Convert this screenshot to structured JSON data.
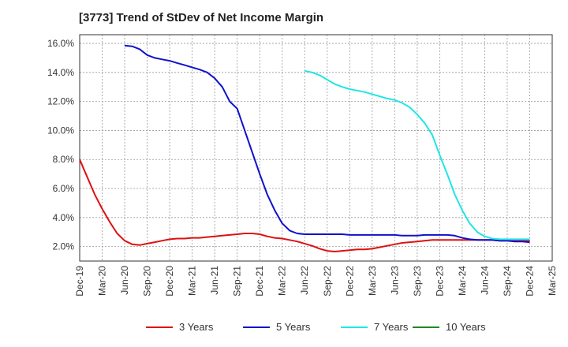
{
  "chart_data": {
    "type": "line",
    "title": "[3773]  Trend of StDev of Net Income Margin",
    "xlabel": "",
    "ylabel": "",
    "x_ticks": [
      "Dec-19",
      "Mar-20",
      "Jun-20",
      "Sep-20",
      "Dec-20",
      "Mar-21",
      "Jun-21",
      "Sep-21",
      "Dec-21",
      "Mar-22",
      "Jun-22",
      "Sep-22",
      "Dec-22",
      "Mar-23",
      "Jun-23",
      "Sep-23",
      "Dec-23",
      "Mar-24",
      "Jun-24",
      "Sep-24",
      "Dec-24",
      "Mar-25"
    ],
    "y_ticks": [
      "2.0%",
      "4.0%",
      "6.0%",
      "8.0%",
      "10.0%",
      "12.0%",
      "14.0%",
      "16.0%"
    ],
    "ylim": [
      1.0,
      16.6
    ],
    "grid": true,
    "legend_position": "bottom",
    "series": [
      {
        "name": "3 Years",
        "color": "#dd1111",
        "values": [
          {
            "x": "Dec-19",
            "y": 8.0
          },
          {
            "x": "Jan-20",
            "y": 6.8
          },
          {
            "x": "Feb-20",
            "y": 5.6
          },
          {
            "x": "Mar-20",
            "y": 4.6
          },
          {
            "x": "Apr-20",
            "y": 3.7
          },
          {
            "x": "May-20",
            "y": 2.9
          },
          {
            "x": "Jun-20",
            "y": 2.4
          },
          {
            "x": "Jul-20",
            "y": 2.15
          },
          {
            "x": "Aug-20",
            "y": 2.1
          },
          {
            "x": "Sep-20",
            "y": 2.2
          },
          {
            "x": "Oct-20",
            "y": 2.3
          },
          {
            "x": "Nov-20",
            "y": 2.4
          },
          {
            "x": "Dec-20",
            "y": 2.5
          },
          {
            "x": "Jan-21",
            "y": 2.55
          },
          {
            "x": "Feb-21",
            "y": 2.55
          },
          {
            "x": "Mar-21",
            "y": 2.6
          },
          {
            "x": "Apr-21",
            "y": 2.6
          },
          {
            "x": "May-21",
            "y": 2.65
          },
          {
            "x": "Jun-21",
            "y": 2.7
          },
          {
            "x": "Jul-21",
            "y": 2.75
          },
          {
            "x": "Aug-21",
            "y": 2.8
          },
          {
            "x": "Sep-21",
            "y": 2.85
          },
          {
            "x": "Oct-21",
            "y": 2.9
          },
          {
            "x": "Nov-21",
            "y": 2.9
          },
          {
            "x": "Dec-21",
            "y": 2.85
          },
          {
            "x": "Jan-22",
            "y": 2.7
          },
          {
            "x": "Feb-22",
            "y": 2.6
          },
          {
            "x": "Mar-22",
            "y": 2.55
          },
          {
            "x": "Apr-22",
            "y": 2.45
          },
          {
            "x": "May-22",
            "y": 2.35
          },
          {
            "x": "Jun-22",
            "y": 2.2
          },
          {
            "x": "Jul-22",
            "y": 2.05
          },
          {
            "x": "Aug-22",
            "y": 1.85
          },
          {
            "x": "Sep-22",
            "y": 1.7
          },
          {
            "x": "Oct-22",
            "y": 1.65
          },
          {
            "x": "Nov-22",
            "y": 1.7
          },
          {
            "x": "Dec-22",
            "y": 1.75
          },
          {
            "x": "Jan-23",
            "y": 1.8
          },
          {
            "x": "Feb-23",
            "y": 1.8
          },
          {
            "x": "Mar-23",
            "y": 1.85
          },
          {
            "x": "Apr-23",
            "y": 1.95
          },
          {
            "x": "May-23",
            "y": 2.05
          },
          {
            "x": "Jun-23",
            "y": 2.15
          },
          {
            "x": "Jul-23",
            "y": 2.25
          },
          {
            "x": "Aug-23",
            "y": 2.3
          },
          {
            "x": "Sep-23",
            "y": 2.35
          },
          {
            "x": "Oct-23",
            "y": 2.4
          },
          {
            "x": "Nov-23",
            "y": 2.45
          },
          {
            "x": "Dec-23",
            "y": 2.45
          },
          {
            "x": "Jan-24",
            "y": 2.45
          },
          {
            "x": "Feb-24",
            "y": 2.45
          },
          {
            "x": "Mar-24",
            "y": 2.45
          },
          {
            "x": "Apr-24",
            "y": 2.45
          },
          {
            "x": "May-24",
            "y": 2.45
          },
          {
            "x": "Jun-24",
            "y": 2.45
          },
          {
            "x": "Jul-24",
            "y": 2.45
          },
          {
            "x": "Aug-24",
            "y": 2.4
          },
          {
            "x": "Sep-24",
            "y": 2.4
          },
          {
            "x": "Oct-24",
            "y": 2.4
          },
          {
            "x": "Nov-24",
            "y": 2.4
          },
          {
            "x": "Dec-24",
            "y": 2.4
          }
        ]
      },
      {
        "name": "5 Years",
        "color": "#1111cc",
        "values": [
          {
            "x": "Jun-20",
            "y": 15.85
          },
          {
            "x": "Jul-20",
            "y": 15.8
          },
          {
            "x": "Aug-20",
            "y": 15.6
          },
          {
            "x": "Sep-20",
            "y": 15.2
          },
          {
            "x": "Oct-20",
            "y": 15.0
          },
          {
            "x": "Nov-20",
            "y": 14.9
          },
          {
            "x": "Dec-20",
            "y": 14.8
          },
          {
            "x": "Jan-21",
            "y": 14.65
          },
          {
            "x": "Feb-21",
            "y": 14.5
          },
          {
            "x": "Mar-21",
            "y": 14.35
          },
          {
            "x": "Apr-21",
            "y": 14.2
          },
          {
            "x": "May-21",
            "y": 14.0
          },
          {
            "x": "Jun-21",
            "y": 13.6
          },
          {
            "x": "Jul-21",
            "y": 13.0
          },
          {
            "x": "Aug-21",
            "y": 12.0
          },
          {
            "x": "Sep-21",
            "y": 11.5
          },
          {
            "x": "Oct-21",
            "y": 10.0
          },
          {
            "x": "Nov-21",
            "y": 8.5
          },
          {
            "x": "Dec-21",
            "y": 7.0
          },
          {
            "x": "Jan-22",
            "y": 5.6
          },
          {
            "x": "Feb-22",
            "y": 4.5
          },
          {
            "x": "Mar-22",
            "y": 3.6
          },
          {
            "x": "Apr-22",
            "y": 3.1
          },
          {
            "x": "May-22",
            "y": 2.9
          },
          {
            "x": "Jun-22",
            "y": 2.85
          },
          {
            "x": "Jul-22",
            "y": 2.85
          },
          {
            "x": "Aug-22",
            "y": 2.85
          },
          {
            "x": "Sep-22",
            "y": 2.85
          },
          {
            "x": "Oct-22",
            "y": 2.85
          },
          {
            "x": "Nov-22",
            "y": 2.85
          },
          {
            "x": "Dec-22",
            "y": 2.8
          },
          {
            "x": "Jan-23",
            "y": 2.8
          },
          {
            "x": "Feb-23",
            "y": 2.8
          },
          {
            "x": "Mar-23",
            "y": 2.8
          },
          {
            "x": "Apr-23",
            "y": 2.8
          },
          {
            "x": "May-23",
            "y": 2.8
          },
          {
            "x": "Jun-23",
            "y": 2.8
          },
          {
            "x": "Jul-23",
            "y": 2.75
          },
          {
            "x": "Aug-23",
            "y": 2.75
          },
          {
            "x": "Sep-23",
            "y": 2.75
          },
          {
            "x": "Oct-23",
            "y": 2.8
          },
          {
            "x": "Nov-23",
            "y": 2.8
          },
          {
            "x": "Dec-23",
            "y": 2.8
          },
          {
            "x": "Jan-24",
            "y": 2.8
          },
          {
            "x": "Feb-24",
            "y": 2.75
          },
          {
            "x": "Mar-24",
            "y": 2.6
          },
          {
            "x": "Apr-24",
            "y": 2.5
          },
          {
            "x": "May-24",
            "y": 2.45
          },
          {
            "x": "Jun-24",
            "y": 2.45
          },
          {
            "x": "Jul-24",
            "y": 2.45
          },
          {
            "x": "Aug-24",
            "y": 2.4
          },
          {
            "x": "Sep-24",
            "y": 2.4
          },
          {
            "x": "Oct-24",
            "y": 2.35
          },
          {
            "x": "Nov-24",
            "y": 2.35
          },
          {
            "x": "Dec-24",
            "y": 2.3
          }
        ]
      },
      {
        "name": "7 Years",
        "color": "#22e5e5",
        "values": [
          {
            "x": "Jun-22",
            "y": 14.1
          },
          {
            "x": "Jul-22",
            "y": 14.0
          },
          {
            "x": "Aug-22",
            "y": 13.8
          },
          {
            "x": "Sep-22",
            "y": 13.5
          },
          {
            "x": "Oct-22",
            "y": 13.2
          },
          {
            "x": "Nov-22",
            "y": 13.0
          },
          {
            "x": "Dec-22",
            "y": 12.85
          },
          {
            "x": "Jan-23",
            "y": 12.75
          },
          {
            "x": "Feb-23",
            "y": 12.65
          },
          {
            "x": "Mar-23",
            "y": 12.5
          },
          {
            "x": "Apr-23",
            "y": 12.35
          },
          {
            "x": "May-23",
            "y": 12.2
          },
          {
            "x": "Jun-23",
            "y": 12.1
          },
          {
            "x": "Jul-23",
            "y": 11.9
          },
          {
            "x": "Aug-23",
            "y": 11.6
          },
          {
            "x": "Sep-23",
            "y": 11.1
          },
          {
            "x": "Oct-23",
            "y": 10.5
          },
          {
            "x": "Nov-23",
            "y": 9.7
          },
          {
            "x": "Dec-23",
            "y": 8.3
          },
          {
            "x": "Jan-24",
            "y": 7.0
          },
          {
            "x": "Feb-24",
            "y": 5.6
          },
          {
            "x": "Mar-24",
            "y": 4.5
          },
          {
            "x": "Apr-24",
            "y": 3.6
          },
          {
            "x": "May-24",
            "y": 3.0
          },
          {
            "x": "Jun-24",
            "y": 2.7
          },
          {
            "x": "Jul-24",
            "y": 2.55
          },
          {
            "x": "Aug-24",
            "y": 2.5
          },
          {
            "x": "Sep-24",
            "y": 2.5
          },
          {
            "x": "Oct-24",
            "y": 2.5
          },
          {
            "x": "Nov-24",
            "y": 2.5
          },
          {
            "x": "Dec-24",
            "y": 2.5
          }
        ]
      },
      {
        "name": "10 Years",
        "color": "#228822",
        "values": []
      }
    ]
  }
}
